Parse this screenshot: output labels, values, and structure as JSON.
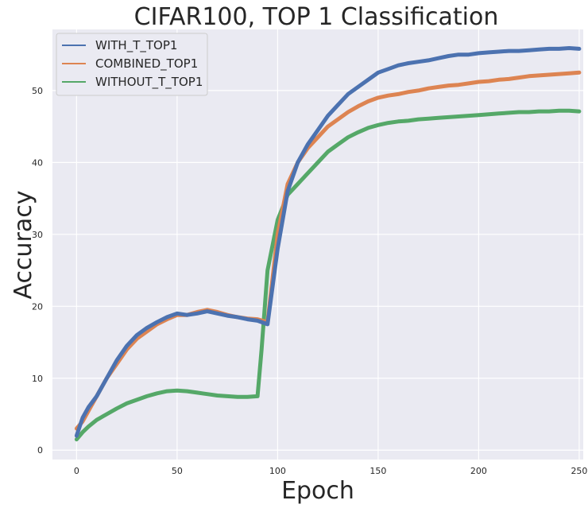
{
  "chart_data": {
    "type": "line",
    "title": "CIFAR100, TOP 1 Classification",
    "xlabel": "Epoch",
    "ylabel": "Accuracy",
    "xlim": [
      -12,
      252
    ],
    "ylim": [
      -1.3,
      58.5
    ],
    "xticks": [
      0,
      50,
      100,
      150,
      200,
      250
    ],
    "yticks": [
      0,
      10,
      20,
      30,
      40,
      50
    ],
    "grid": true,
    "legend_position": "top-left",
    "series": [
      {
        "name": "WITH_T_TOP1",
        "color": "#4c72b0",
        "x": [
          0,
          3,
          6,
          10,
          15,
          20,
          25,
          30,
          35,
          40,
          45,
          50,
          55,
          60,
          65,
          70,
          75,
          80,
          85,
          90,
          95,
          100,
          105,
          110,
          115,
          120,
          125,
          130,
          135,
          140,
          145,
          150,
          155,
          160,
          165,
          170,
          175,
          180,
          185,
          190,
          195,
          200,
          205,
          210,
          215,
          220,
          225,
          230,
          235,
          240,
          245,
          250
        ],
        "y": [
          2.0,
          4.5,
          6.0,
          7.5,
          10.0,
          12.5,
          14.5,
          16.0,
          17.0,
          17.8,
          18.5,
          19.0,
          18.8,
          19.0,
          19.3,
          19.0,
          18.7,
          18.5,
          18.2,
          18.0,
          17.5,
          28.0,
          36.0,
          40.0,
          42.5,
          44.5,
          46.5,
          48.0,
          49.5,
          50.5,
          51.5,
          52.5,
          53.0,
          53.5,
          53.8,
          54.0,
          54.2,
          54.5,
          54.8,
          55.0,
          55.0,
          55.2,
          55.3,
          55.4,
          55.5,
          55.5,
          55.6,
          55.7,
          55.8,
          55.8,
          55.9,
          55.8
        ]
      },
      {
        "name": "COMBINED_TOP1",
        "color": "#dd8452",
        "x": [
          0,
          3,
          6,
          10,
          15,
          20,
          25,
          30,
          35,
          40,
          45,
          50,
          55,
          60,
          65,
          70,
          75,
          80,
          85,
          90,
          95,
          100,
          105,
          110,
          115,
          120,
          125,
          130,
          135,
          140,
          145,
          150,
          155,
          160,
          165,
          170,
          175,
          180,
          185,
          190,
          195,
          200,
          205,
          210,
          215,
          220,
          225,
          230,
          235,
          240,
          245,
          250
        ],
        "y": [
          3.0,
          4.0,
          5.5,
          7.5,
          10.0,
          12.0,
          14.0,
          15.5,
          16.5,
          17.5,
          18.2,
          18.8,
          18.8,
          19.2,
          19.5,
          19.2,
          18.8,
          18.5,
          18.3,
          18.2,
          17.8,
          30.0,
          37.0,
          40.0,
          42.0,
          43.5,
          45.0,
          46.0,
          47.0,
          47.8,
          48.5,
          49.0,
          49.3,
          49.5,
          49.8,
          50.0,
          50.3,
          50.5,
          50.7,
          50.8,
          51.0,
          51.2,
          51.3,
          51.5,
          51.6,
          51.8,
          52.0,
          52.1,
          52.2,
          52.3,
          52.4,
          52.5
        ]
      },
      {
        "name": "WITHOUT_T_TOP1",
        "color": "#55a868",
        "x": [
          0,
          3,
          6,
          10,
          15,
          20,
          25,
          30,
          35,
          40,
          45,
          50,
          55,
          60,
          65,
          70,
          75,
          80,
          85,
          90,
          92,
          95,
          100,
          105,
          110,
          115,
          120,
          125,
          130,
          135,
          140,
          145,
          150,
          155,
          160,
          165,
          170,
          175,
          180,
          185,
          190,
          195,
          200,
          205,
          210,
          215,
          220,
          225,
          230,
          235,
          240,
          245,
          250
        ],
        "y": [
          1.5,
          2.5,
          3.3,
          4.2,
          5.0,
          5.8,
          6.5,
          7.0,
          7.5,
          7.9,
          8.2,
          8.3,
          8.2,
          8.0,
          7.8,
          7.6,
          7.5,
          7.4,
          7.4,
          7.5,
          14.0,
          25.0,
          32.0,
          35.5,
          37.0,
          38.5,
          40.0,
          41.5,
          42.5,
          43.5,
          44.2,
          44.8,
          45.2,
          45.5,
          45.7,
          45.8,
          46.0,
          46.1,
          46.2,
          46.3,
          46.4,
          46.5,
          46.6,
          46.7,
          46.8,
          46.9,
          47.0,
          47.0,
          47.1,
          47.1,
          47.2,
          47.2,
          47.1
        ]
      }
    ]
  }
}
